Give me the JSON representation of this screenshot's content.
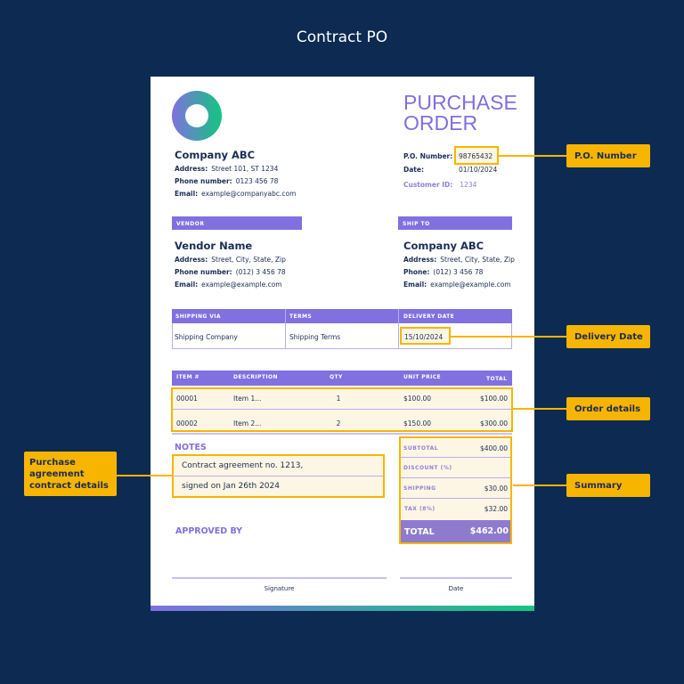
{
  "title": "Contract PO",
  "company": {
    "name": "Company ABC",
    "address_label": "Address:",
    "address": "Street 101, ST 1234",
    "phone_label": "Phone number:",
    "phone": "0123 456 78",
    "email_label": "Email:",
    "email": "example@companyabc.com"
  },
  "doc_title_1": "PURCHASE",
  "doc_title_2": "ORDER",
  "po": {
    "number_label": "P.O. Number:",
    "number": "98765432",
    "date_label": "Date:",
    "date": "01/10/2024",
    "customer_label": "Customer ID:",
    "customer": "1234"
  },
  "vendor": {
    "header": "VENDOR",
    "name": "Vendor Name",
    "address_label": "Address:",
    "address": "Street, City, State, Zip",
    "phone_label": "Phone number:",
    "phone": "(012) 3 456 78",
    "email_label": "Email:",
    "email": "example@example.com"
  },
  "ship_to": {
    "header": "SHIP TO",
    "name": "Company ABC",
    "address_label": "Address:",
    "address": "Street, City, State, Zip",
    "phone_label": "Phone:",
    "phone": "(012) 3 456 78",
    "email_label": "Email:",
    "email": "example@example.com"
  },
  "shipping": {
    "headers": [
      "SHIPPING VIA",
      "TERMS",
      "DELIVERY DATE"
    ],
    "values": [
      "Shipping Company",
      "Shipping Terms",
      "15/10/2024"
    ]
  },
  "items": {
    "headers": [
      "ITEM #",
      "DESCRIPTION",
      "QTY",
      "UNIT PRICE",
      "TOTAL"
    ],
    "rows": [
      [
        "00001",
        "Item 1...",
        "1",
        "$100.00",
        "$100.00"
      ],
      [
        "00002",
        "Item 2...",
        "2",
        "$150.00",
        "$300.00"
      ]
    ]
  },
  "notes": {
    "label": "NOTES",
    "line1": "Contract agreement no. 1213,",
    "line2": "signed on Jan 26th 2024"
  },
  "summary": {
    "subtotal_label": "SUBTOTAL",
    "subtotal": "$400.00",
    "discount_label": "DISCOUNT (%)",
    "discount": "",
    "shipping_label": "SHIPPING",
    "shipping": "$30.00",
    "tax_label": "TAX (8%)",
    "tax": "$32.00",
    "total_label": "TOTAL",
    "total": "$462.00"
  },
  "approved_by": "APPROVED BY",
  "signature_label": "Signature",
  "date_label": "Date",
  "callouts": {
    "po": "P.O. Number",
    "delivery": "Delivery Date",
    "order": "Order details",
    "summary": "Summary",
    "agreement": "Purchase agreement contract details"
  },
  "colors": {
    "background": "#0c2a52",
    "accent": "#8070e0",
    "highlight": "#f7b500"
  }
}
